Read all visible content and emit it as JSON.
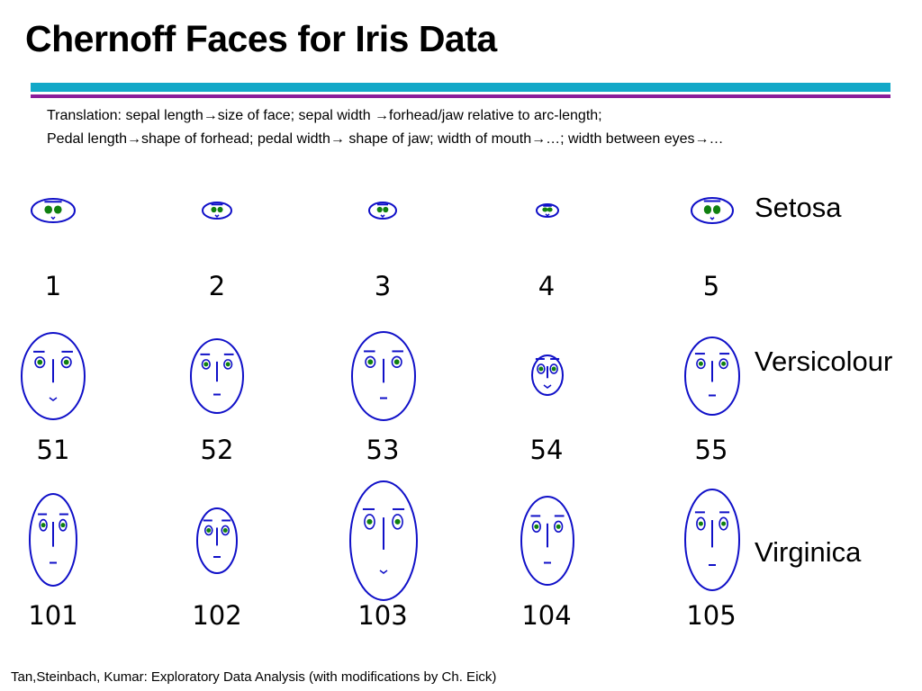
{
  "title": "Chernoff Faces for Iris Data",
  "translation_lines": [
    "Translation: sepal length→size of face; sepal width →forhead/jaw relative to arc-length;",
    "Pedal length→shape of forhead; pedal width→ shape of jaw; width of mouth→…; width between eyes→…"
  ],
  "classes": [
    "Setosa",
    "Versicolour",
    "Virginica"
  ],
  "rows": [
    {
      "class": "Setosa",
      "faces": [
        "1",
        "2",
        "3",
        "4",
        "5"
      ]
    },
    {
      "class": "Versicolour",
      "faces": [
        "51",
        "52",
        "53",
        "54",
        "55"
      ]
    },
    {
      "class": "Virginica",
      "faces": [
        "101",
        "102",
        "103",
        "104",
        "105"
      ]
    }
  ],
  "footer": "Tan,Steinbach, Kumar: Exploratory Data Analysis (with modifications by Ch. Eick)",
  "colors": {
    "face_outline": "#1010c8",
    "eye_pupil": "#108010",
    "rule_top": "#12a8c8",
    "rule_bottom": "#8a1d9a"
  }
}
